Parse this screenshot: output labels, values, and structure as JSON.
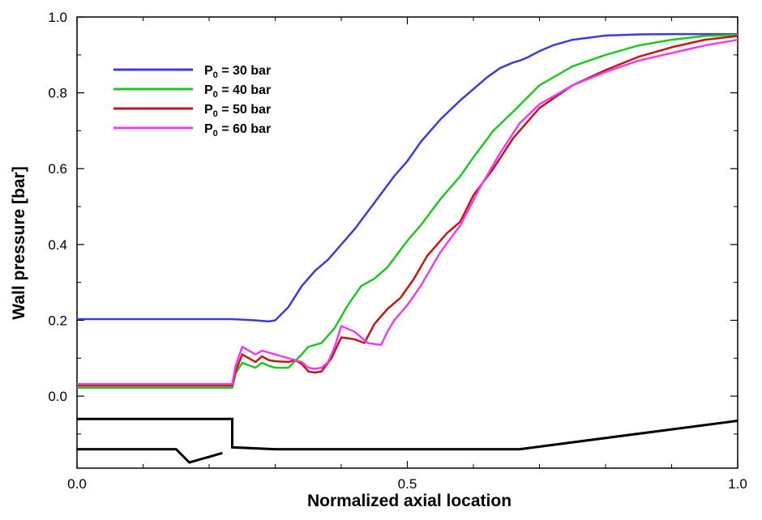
{
  "chart_data": {
    "type": "line",
    "xlabel": "Normalized axial location",
    "ylabel": "Wall pressure [bar]",
    "xlim": [
      0.0,
      1.0
    ],
    "ylim": [
      -0.19,
      1.0
    ],
    "xticks": [
      0.0,
      0.5,
      1.0
    ],
    "xtick_labels": [
      "0.0",
      "0.5",
      "1.0"
    ],
    "yticks": [
      0.0,
      0.2,
      0.4,
      0.6,
      0.8,
      1.0
    ],
    "ytick_labels": [
      "0.0",
      "0.2",
      "0.4",
      "0.6",
      "0.8",
      "1.0"
    ],
    "legend_position": "top-left",
    "series": [
      {
        "name": "P0 = 30 bar",
        "label_main": "P",
        "label_sub": "0",
        "label_rest": " = 30 bar",
        "color": "#3b3bde",
        "x": [
          0.0,
          0.235,
          0.27,
          0.29,
          0.3,
          0.32,
          0.34,
          0.36,
          0.38,
          0.4,
          0.42,
          0.45,
          0.48,
          0.5,
          0.52,
          0.55,
          0.58,
          0.6,
          0.62,
          0.64,
          0.66,
          0.67,
          0.68,
          0.7,
          0.72,
          0.75,
          0.8,
          0.85,
          0.9,
          1.0
        ],
        "y": [
          0.203,
          0.203,
          0.2,
          0.197,
          0.2,
          0.235,
          0.29,
          0.33,
          0.36,
          0.4,
          0.44,
          0.51,
          0.58,
          0.62,
          0.67,
          0.73,
          0.78,
          0.81,
          0.84,
          0.865,
          0.88,
          0.885,
          0.892,
          0.91,
          0.925,
          0.94,
          0.951,
          0.954,
          0.955,
          0.955
        ]
      },
      {
        "name": "P0 = 40 bar",
        "label_main": "P",
        "label_sub": "0",
        "label_rest": " = 40 bar",
        "color": "#1ec81e",
        "x": [
          0.0,
          0.235,
          0.24,
          0.25,
          0.27,
          0.28,
          0.29,
          0.3,
          0.32,
          0.34,
          0.35,
          0.37,
          0.39,
          0.41,
          0.43,
          0.45,
          0.47,
          0.5,
          0.52,
          0.55,
          0.58,
          0.6,
          0.63,
          0.66,
          0.7,
          0.75,
          0.8,
          0.85,
          0.9,
          0.95,
          1.0
        ],
        "y": [
          0.022,
          0.022,
          0.06,
          0.088,
          0.075,
          0.088,
          0.08,
          0.075,
          0.075,
          0.11,
          0.13,
          0.14,
          0.18,
          0.24,
          0.29,
          0.31,
          0.34,
          0.41,
          0.45,
          0.52,
          0.58,
          0.63,
          0.7,
          0.75,
          0.82,
          0.87,
          0.9,
          0.925,
          0.94,
          0.95,
          0.953
        ]
      },
      {
        "name": "P0 = 50 bar",
        "label_main": "P",
        "label_sub": "0",
        "label_rest": " = 50 bar",
        "color": "#c81414",
        "x": [
          0.0,
          0.235,
          0.24,
          0.25,
          0.27,
          0.28,
          0.29,
          0.3,
          0.32,
          0.33,
          0.34,
          0.35,
          0.36,
          0.37,
          0.385,
          0.4,
          0.42,
          0.435,
          0.45,
          0.47,
          0.49,
          0.51,
          0.53,
          0.56,
          0.58,
          0.6,
          0.63,
          0.66,
          0.7,
          0.75,
          0.8,
          0.85,
          0.9,
          0.95,
          1.0
        ],
        "y": [
          0.028,
          0.028,
          0.065,
          0.11,
          0.09,
          0.105,
          0.095,
          0.092,
          0.09,
          0.095,
          0.085,
          0.065,
          0.062,
          0.065,
          0.1,
          0.155,
          0.15,
          0.14,
          0.19,
          0.23,
          0.26,
          0.31,
          0.37,
          0.43,
          0.46,
          0.53,
          0.6,
          0.68,
          0.76,
          0.82,
          0.86,
          0.895,
          0.92,
          0.94,
          0.95
        ]
      },
      {
        "name": "P0 = 60 bar",
        "label_main": "P",
        "label_sub": "0",
        "label_rest": " = 60 bar",
        "color": "#f03cf0",
        "x": [
          0.0,
          0.235,
          0.24,
          0.25,
          0.27,
          0.28,
          0.29,
          0.3,
          0.32,
          0.34,
          0.35,
          0.36,
          0.37,
          0.38,
          0.39,
          0.4,
          0.42,
          0.44,
          0.46,
          0.47,
          0.48,
          0.5,
          0.52,
          0.55,
          0.58,
          0.61,
          0.64,
          0.67,
          0.7,
          0.75,
          0.8,
          0.85,
          0.9,
          0.95,
          1.0
        ],
        "y": [
          0.032,
          0.032,
          0.08,
          0.13,
          0.11,
          0.12,
          0.115,
          0.11,
          0.1,
          0.09,
          0.075,
          0.072,
          0.075,
          0.09,
          0.13,
          0.185,
          0.17,
          0.14,
          0.135,
          0.17,
          0.2,
          0.24,
          0.29,
          0.38,
          0.45,
          0.55,
          0.64,
          0.72,
          0.77,
          0.82,
          0.855,
          0.885,
          0.905,
          0.925,
          0.94
        ]
      }
    ],
    "geometry_outline": {
      "name": "nozzle profile",
      "color": "#000000",
      "upper_wall": {
        "x": [
          0.0,
          0.235,
          0.235,
          0.3,
          0.67,
          1.0
        ],
        "y": [
          -0.06,
          -0.06,
          -0.135,
          -0.14,
          -0.14,
          -0.065
        ]
      },
      "lower_wall": {
        "x": [
          0.0,
          0.15,
          0.17,
          0.22
        ],
        "y": [
          -0.14,
          -0.14,
          -0.175,
          -0.15
        ]
      }
    }
  }
}
